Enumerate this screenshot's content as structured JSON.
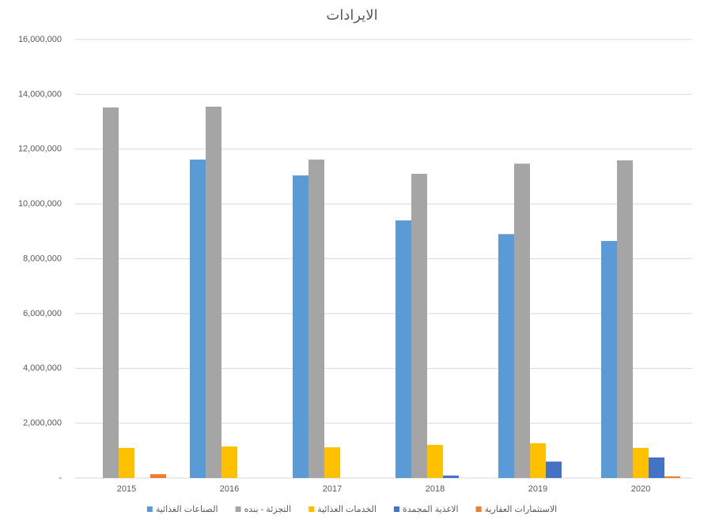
{
  "chart_data": {
    "type": "bar",
    "title": "الايرادات",
    "categories": [
      "2015",
      "2016",
      "2017",
      "2018",
      "2019",
      "2020"
    ],
    "series": [
      {
        "name": "الصناعات الغذائية",
        "color": "#5b9bd5",
        "values": [
          null,
          11620000,
          11040000,
          9400000,
          8900000,
          8650000
        ]
      },
      {
        "name": "التجزئة - بنده",
        "color": "#a5a5a5",
        "values": [
          13520000,
          13550000,
          11620000,
          11100000,
          11470000,
          11590000
        ]
      },
      {
        "name": "الخدمات الغذائية",
        "color": "#ffc000",
        "values": [
          1100000,
          1150000,
          1120000,
          1210000,
          1270000,
          1100000
        ]
      },
      {
        "name": "الاغذية المجمدة",
        "color": "#4472c4",
        "values": [
          null,
          null,
          null,
          90000,
          600000,
          750000
        ]
      },
      {
        "name": "الاستثمارات العقارية",
        "color": "#ed7d31",
        "values": [
          140000,
          null,
          null,
          null,
          null,
          60000
        ]
      }
    ],
    "ylim": [
      0,
      16000000
    ],
    "yticks": [
      {
        "value": 0,
        "label": "-"
      },
      {
        "value": 2000000,
        "label": "2,000,000"
      },
      {
        "value": 4000000,
        "label": "4,000,000"
      },
      {
        "value": 6000000,
        "label": "6,000,000"
      },
      {
        "value": 8000000,
        "label": "8,000,000"
      },
      {
        "value": 10000000,
        "label": "10,000,000"
      },
      {
        "value": 12000000,
        "label": "12,000,000"
      },
      {
        "value": 14000000,
        "label": "14,000,000"
      },
      {
        "value": 16000000,
        "label": "16,000,000"
      }
    ],
    "grid": true,
    "legend": "bottom"
  }
}
